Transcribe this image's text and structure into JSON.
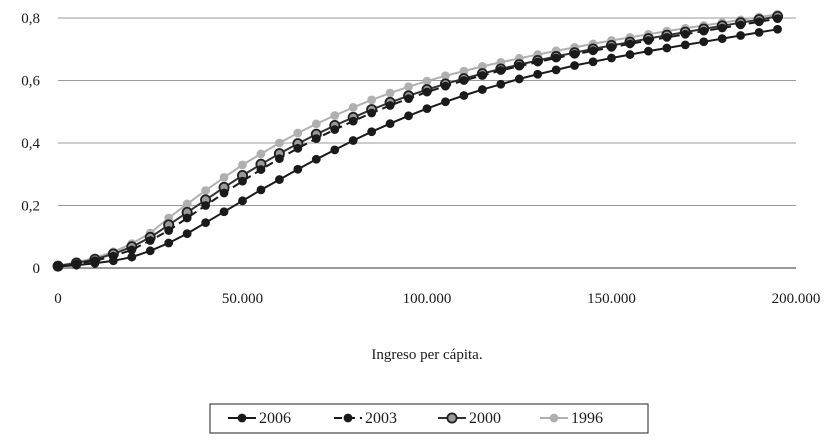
{
  "chart_data": {
    "type": "line",
    "title": "",
    "xlabel": "Ingreso per cápita.",
    "ylabel": "",
    "xlim": [
      0,
      200000
    ],
    "ylim": [
      0,
      0.8
    ],
    "x_ticks": [
      {
        "value": 0,
        "label": "0"
      },
      {
        "value": 50000,
        "label": "50.000"
      },
      {
        "value": 100000,
        "label": "100.000"
      },
      {
        "value": 150000,
        "label": "150.000"
      },
      {
        "value": 200000,
        "label": "200.000"
      }
    ],
    "y_ticks": [
      {
        "value": 0,
        "label": "0"
      },
      {
        "value": 0.2,
        "label": "0,2"
      },
      {
        "value": 0.4,
        "label": "0,4"
      },
      {
        "value": 0.6,
        "label": "0,6"
      },
      {
        "value": 0.8,
        "label": "0,8"
      }
    ],
    "grid": "horizontal",
    "legend_position": "bottom",
    "x": [
      0,
      5000,
      10000,
      15000,
      20000,
      25000,
      30000,
      35000,
      40000,
      45000,
      50000,
      55000,
      60000,
      65000,
      70000,
      75000,
      80000,
      85000,
      90000,
      95000,
      100000,
      105000,
      110000,
      115000,
      120000,
      125000,
      130000,
      135000,
      140000,
      145000,
      150000,
      155000,
      160000,
      165000,
      170000,
      175000,
      180000,
      185000,
      190000,
      195000
    ],
    "series": [
      {
        "name": "2006",
        "color": "#1a1a1a",
        "line_style": "solid",
        "marker": "solid-dot",
        "values": [
          0.005,
          0.009,
          0.015,
          0.023,
          0.035,
          0.055,
          0.08,
          0.11,
          0.145,
          0.18,
          0.215,
          0.25,
          0.283,
          0.316,
          0.348,
          0.378,
          0.408,
          0.436,
          0.462,
          0.487,
          0.51,
          0.532,
          0.552,
          0.571,
          0.588,
          0.605,
          0.62,
          0.634,
          0.648,
          0.66,
          0.672,
          0.683,
          0.694,
          0.704,
          0.714,
          0.724,
          0.734,
          0.744,
          0.754,
          0.764
        ]
      },
      {
        "name": "2003",
        "color": "#1a1a1a",
        "line_style": "dashed",
        "marker": "solid-dot",
        "values": [
          0.005,
          0.013,
          0.023,
          0.038,
          0.058,
          0.088,
          0.12,
          0.16,
          0.2,
          0.24,
          0.278,
          0.315,
          0.35,
          0.383,
          0.414,
          0.443,
          0.47,
          0.496,
          0.52,
          0.542,
          0.563,
          0.582,
          0.6,
          0.616,
          0.632,
          0.646,
          0.659,
          0.672,
          0.684,
          0.695,
          0.706,
          0.717,
          0.728,
          0.738,
          0.748,
          0.758,
          0.768,
          0.778,
          0.788,
          0.798
        ]
      },
      {
        "name": "2000",
        "color": "#333333",
        "line_style": "solid",
        "marker": "ringed-dot",
        "values": [
          0.006,
          0.016,
          0.028,
          0.045,
          0.068,
          0.098,
          0.138,
          0.178,
          0.218,
          0.258,
          0.296,
          0.332,
          0.366,
          0.398,
          0.428,
          0.456,
          0.482,
          0.507,
          0.53,
          0.551,
          0.571,
          0.589,
          0.606,
          0.622,
          0.637,
          0.651,
          0.664,
          0.677,
          0.689,
          0.701,
          0.712,
          0.723,
          0.734,
          0.745,
          0.755,
          0.765,
          0.775,
          0.785,
          0.795,
          0.805
        ]
      },
      {
        "name": "1996",
        "color": "#b0b0b0",
        "line_style": "solid",
        "marker": "solid-dot",
        "values": [
          0.008,
          0.018,
          0.032,
          0.052,
          0.078,
          0.112,
          0.16,
          0.205,
          0.248,
          0.29,
          0.33,
          0.365,
          0.4,
          0.432,
          0.461,
          0.488,
          0.514,
          0.538,
          0.56,
          0.58,
          0.598,
          0.615,
          0.63,
          0.645,
          0.658,
          0.671,
          0.683,
          0.695,
          0.706,
          0.717,
          0.728,
          0.738,
          0.748,
          0.758,
          0.767,
          0.776,
          0.785,
          0.794,
          0.803,
          0.812
        ]
      }
    ]
  }
}
